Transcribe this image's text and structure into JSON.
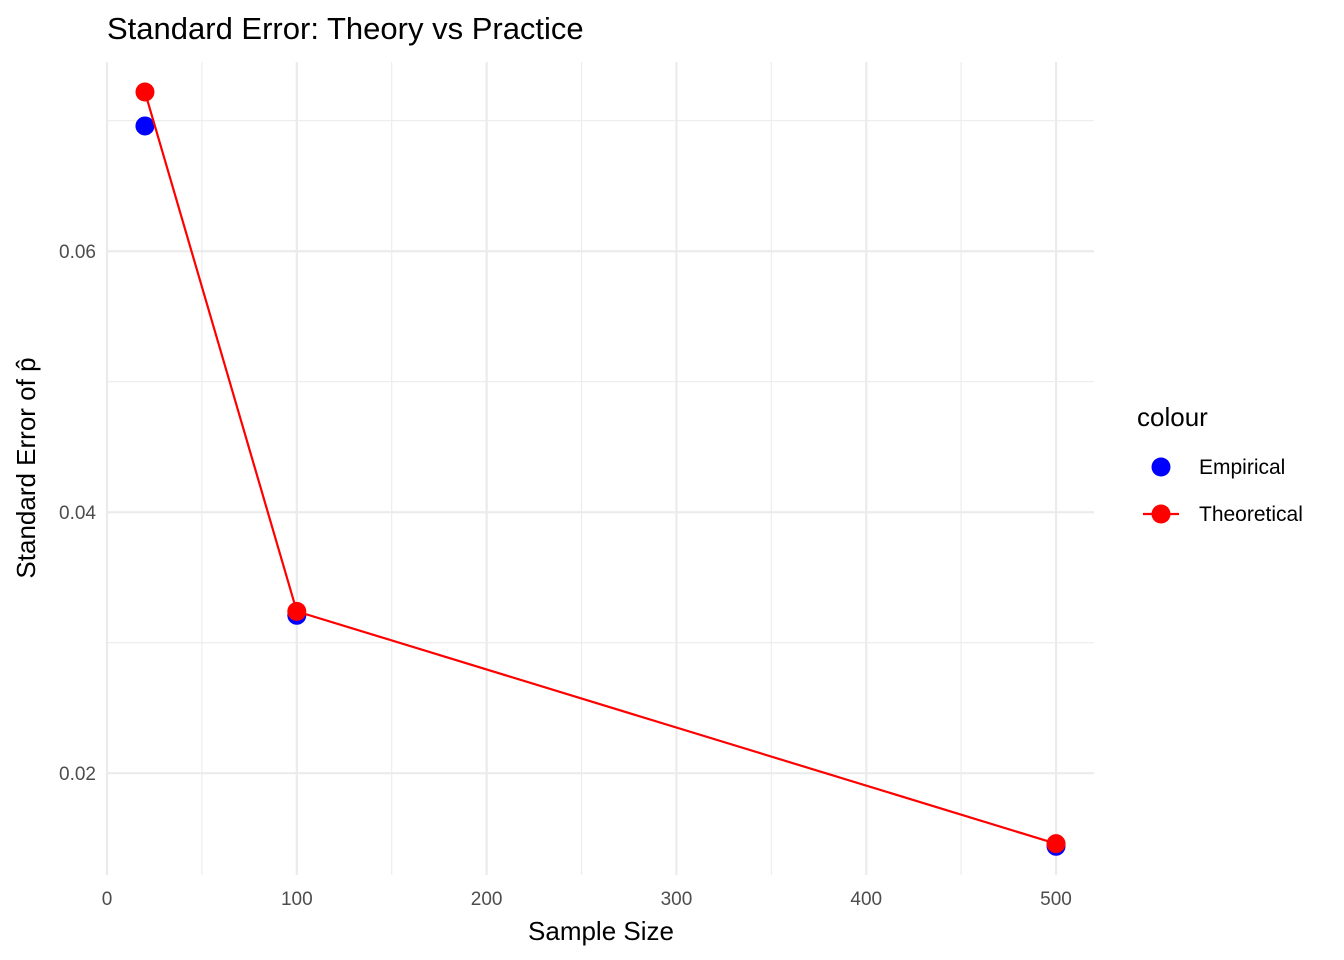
{
  "chart_data": {
    "type": "line",
    "title": "Standard Error: Theory vs Practice",
    "xlabel": "Sample Size",
    "ylabel": "Standard Error of p̂",
    "xlim": [
      0,
      520
    ],
    "ylim": [
      0.0122,
      0.0745
    ],
    "x_ticks": [
      {
        "value": 0,
        "label": "0"
      },
      {
        "value": 100,
        "label": "100"
      },
      {
        "value": 200,
        "label": "200"
      },
      {
        "value": 300,
        "label": "300"
      },
      {
        "value": 400,
        "label": "400"
      },
      {
        "value": 500,
        "label": "500"
      }
    ],
    "y_ticks": [
      {
        "value": 0.02,
        "label": "0.02"
      },
      {
        "value": 0.04,
        "label": "0.04"
      },
      {
        "value": 0.06,
        "label": "0.06"
      }
    ],
    "grid": true,
    "legend": {
      "title": "colour",
      "position": "right"
    },
    "series": [
      {
        "name": "Empirical",
        "color": "#0000ff",
        "style": "points",
        "x": [
          20,
          100,
          500
        ],
        "y": [
          0.0696,
          0.0321,
          0.0144
        ]
      },
      {
        "name": "Theoretical",
        "color": "#ff0000",
        "style": "line+points",
        "x": [
          20,
          100,
          500
        ],
        "y": [
          0.0722,
          0.0324,
          0.0146
        ]
      }
    ]
  }
}
